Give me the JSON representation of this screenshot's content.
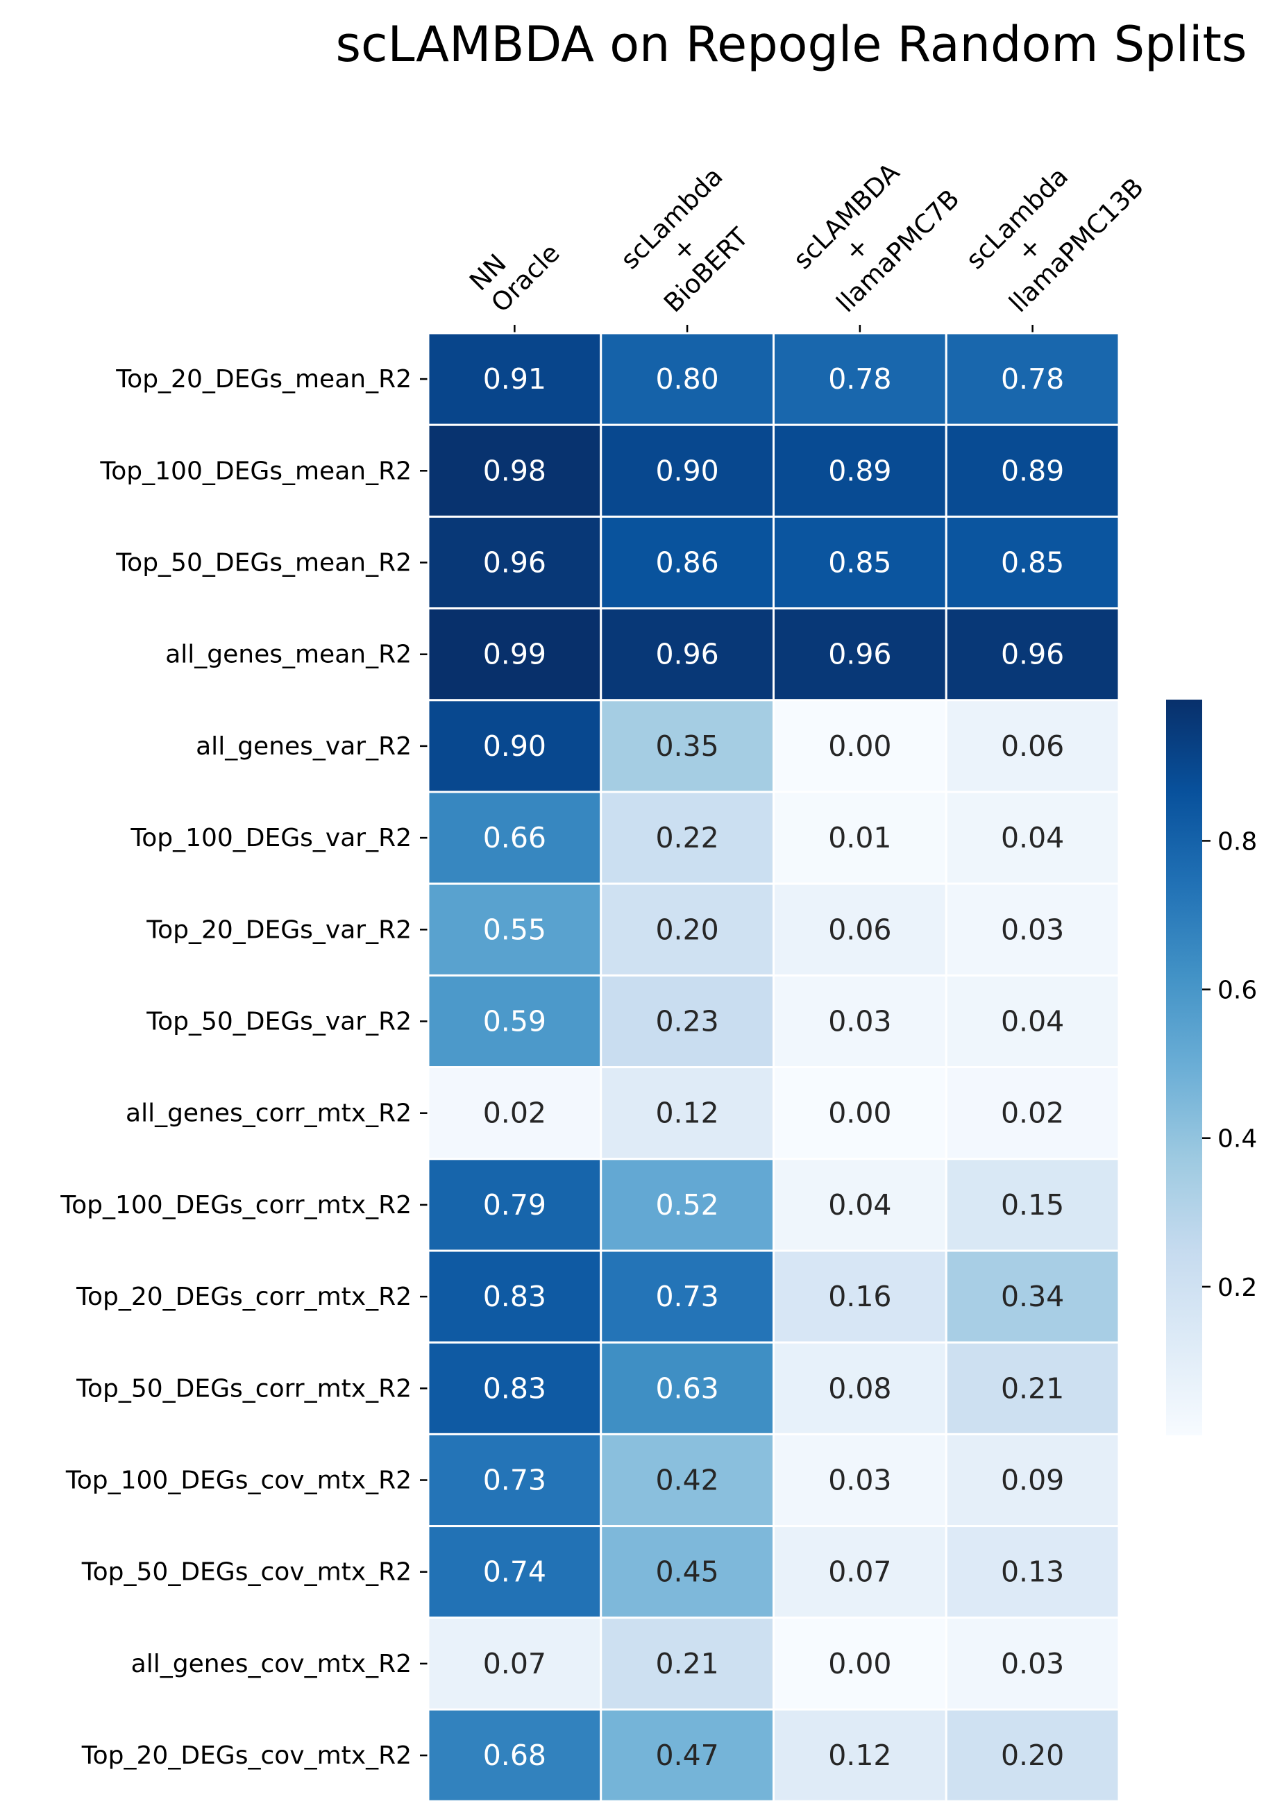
{
  "chart_data": {
    "type": "heatmap",
    "title": "scLAMBDA on Repogle Random Splits",
    "columns": [
      {
        "lines": [
          "NN",
          "Oracle"
        ]
      },
      {
        "lines": [
          "scLambda",
          "+",
          "BioBERT"
        ]
      },
      {
        "lines": [
          "scLAMBDA",
          "+",
          "llamaPMC7B"
        ]
      },
      {
        "lines": [
          "scLambda",
          "+",
          "llamaPMC13B"
        ]
      }
    ],
    "rows": [
      "Top_20_DEGs_mean_R2",
      "Top_100_DEGs_mean_R2",
      "Top_50_DEGs_mean_R2",
      "all_genes_mean_R2",
      "all_genes_var_R2",
      "Top_100_DEGs_var_R2",
      "Top_20_DEGs_var_R2",
      "Top_50_DEGs_var_R2",
      "all_genes_corr_mtx_R2",
      "Top_100_DEGs_corr_mtx_R2",
      "Top_20_DEGs_corr_mtx_R2",
      "Top_50_DEGs_corr_mtx_R2",
      "Top_100_DEGs_cov_mtx_R2",
      "Top_50_DEGs_cov_mtx_R2",
      "all_genes_cov_mtx_R2",
      "Top_20_DEGs_cov_mtx_R2"
    ],
    "values": [
      [
        0.91,
        0.8,
        0.78,
        0.78
      ],
      [
        0.98,
        0.9,
        0.89,
        0.89
      ],
      [
        0.96,
        0.86,
        0.85,
        0.85
      ],
      [
        0.99,
        0.96,
        0.96,
        0.96
      ],
      [
        0.9,
        0.35,
        0.0,
        0.06
      ],
      [
        0.66,
        0.22,
        0.01,
        0.04
      ],
      [
        0.55,
        0.2,
        0.06,
        0.03
      ],
      [
        0.59,
        0.23,
        0.03,
        0.04
      ],
      [
        0.02,
        0.12,
        0.0,
        0.02
      ],
      [
        0.79,
        0.52,
        0.04,
        0.15
      ],
      [
        0.83,
        0.73,
        0.16,
        0.34
      ],
      [
        0.83,
        0.63,
        0.08,
        0.21
      ],
      [
        0.73,
        0.42,
        0.03,
        0.09
      ],
      [
        0.74,
        0.45,
        0.07,
        0.13
      ],
      [
        0.07,
        0.21,
        0.0,
        0.03
      ],
      [
        0.68,
        0.47,
        0.12,
        0.2
      ]
    ],
    "value_format": "2 decimals",
    "colormap": "Blues",
    "colorbar": {
      "min": 0.0,
      "max": 0.99,
      "ticks": [
        0.2,
        0.4,
        0.6,
        0.8
      ],
      "placement": "right"
    },
    "grid": false
  }
}
